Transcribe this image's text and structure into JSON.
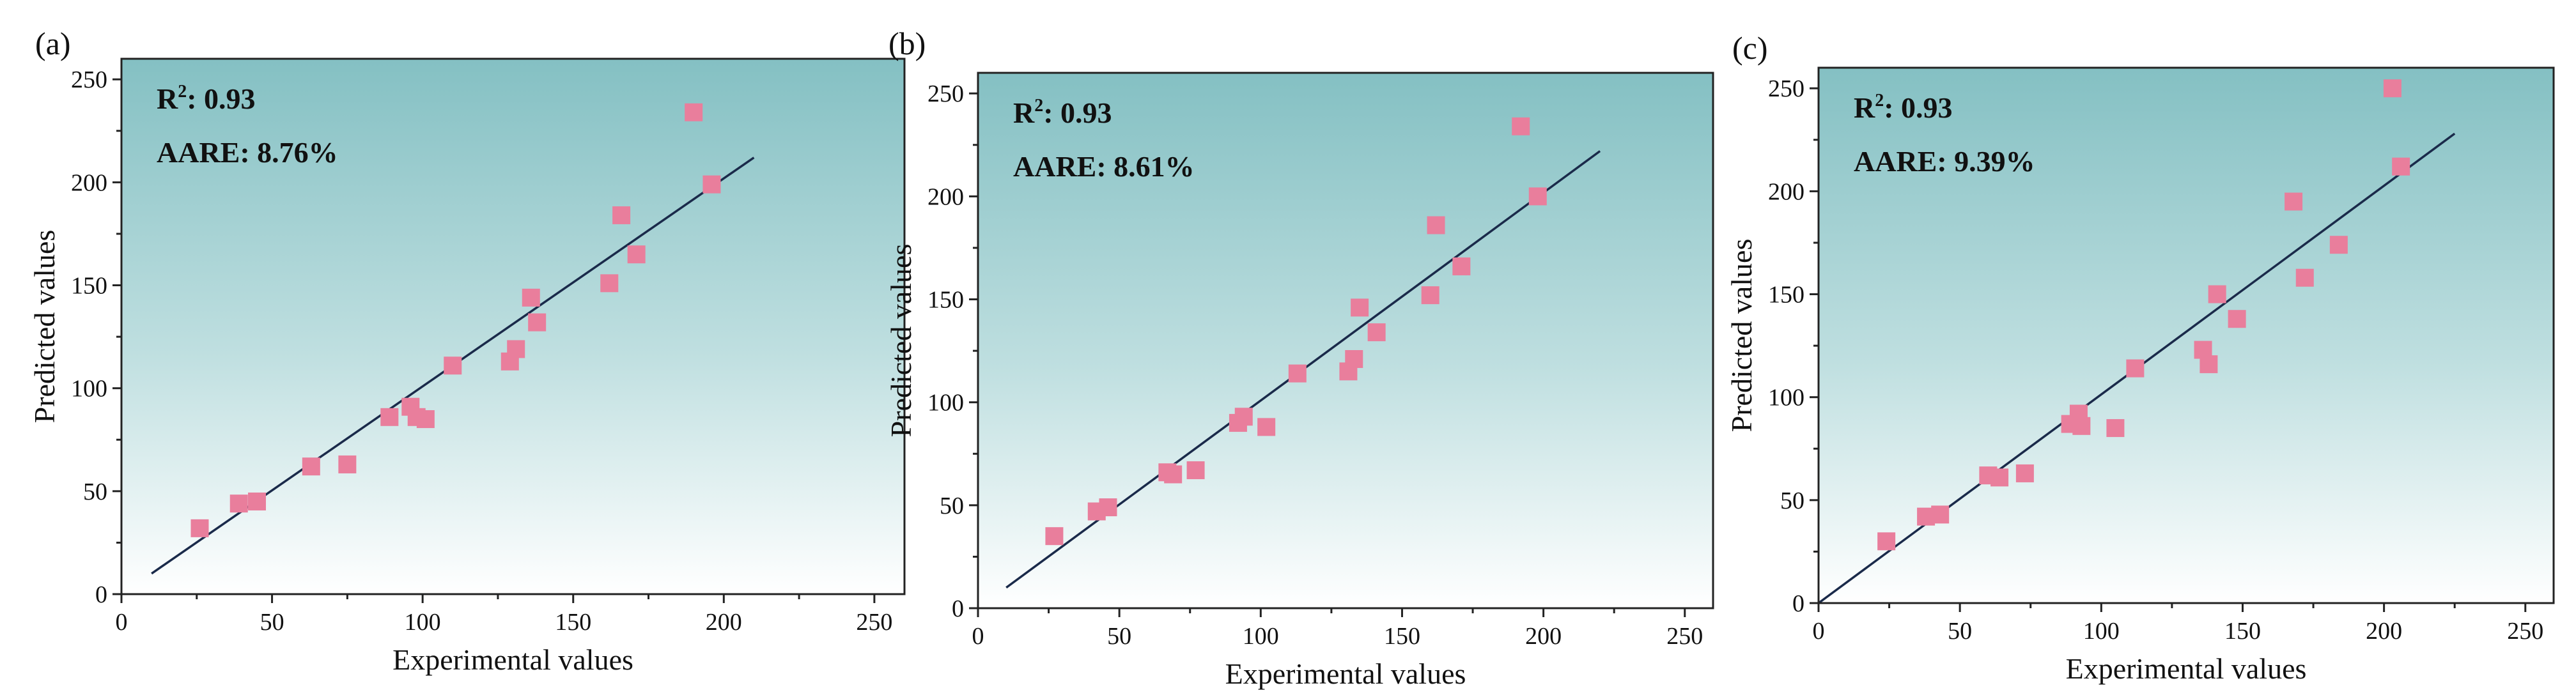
{
  "chart_data": [
    {
      "type": "scatter",
      "panel_label": "(a)",
      "xlabel": "Experimental values",
      "ylabel": "Predicted values",
      "xlim": [
        0,
        260
      ],
      "ylim": [
        0,
        260
      ],
      "xticks": [
        0,
        50,
        100,
        150,
        200,
        250
      ],
      "yticks": [
        0,
        50,
        100,
        150,
        200,
        250
      ],
      "annotation_r2": "0.93",
      "annotation_aare": "AARE: 8.76%",
      "fit_line": [
        [
          10,
          10
        ],
        [
          210,
          212
        ]
      ],
      "marker_color": "#e97e9c",
      "line_color": "#1a2a4a",
      "points": [
        [
          26,
          32
        ],
        [
          39,
          44
        ],
        [
          45,
          45
        ],
        [
          63,
          62
        ],
        [
          75,
          63
        ],
        [
          89,
          86
        ],
        [
          96,
          91
        ],
        [
          98,
          86
        ],
        [
          101,
          85
        ],
        [
          110,
          111
        ],
        [
          129,
          113
        ],
        [
          131,
          119
        ],
        [
          136,
          144
        ],
        [
          138,
          132
        ],
        [
          162,
          151
        ],
        [
          166,
          184
        ],
        [
          171,
          165
        ],
        [
          190,
          234
        ],
        [
          196,
          199
        ]
      ]
    },
    {
      "type": "scatter",
      "panel_label": "(b)",
      "xlabel": "Experimental values",
      "ylabel": "Predicted values",
      "xlim": [
        0,
        260
      ],
      "ylim": [
        0,
        260
      ],
      "xticks": [
        0,
        50,
        100,
        150,
        200,
        250
      ],
      "yticks": [
        0,
        50,
        100,
        150,
        200,
        250
      ],
      "annotation_r2": "0.93",
      "annotation_aare": "AARE: 8.61%",
      "fit_line": [
        [
          10,
          10
        ],
        [
          220,
          222
        ]
      ],
      "marker_color": "#e97e9c",
      "line_color": "#1a2a4a",
      "points": [
        [
          27,
          35
        ],
        [
          42,
          47
        ],
        [
          46,
          49
        ],
        [
          67,
          66
        ],
        [
          69,
          65
        ],
        [
          77,
          67
        ],
        [
          92,
          90
        ],
        [
          94,
          93
        ],
        [
          102,
          88
        ],
        [
          113,
          114
        ],
        [
          131,
          115
        ],
        [
          133,
          121
        ],
        [
          135,
          146
        ],
        [
          141,
          134
        ],
        [
          160,
          152
        ],
        [
          162,
          186
        ],
        [
          171,
          166
        ],
        [
          192,
          234
        ],
        [
          198,
          200
        ]
      ]
    },
    {
      "type": "scatter",
      "panel_label": "(c)",
      "xlabel": "Experimental values",
      "ylabel": "Predicted values",
      "xlim": [
        0,
        260
      ],
      "ylim": [
        0,
        260
      ],
      "xticks": [
        0,
        50,
        100,
        150,
        200,
        250
      ],
      "yticks": [
        0,
        50,
        100,
        150,
        200,
        250
      ],
      "annotation_r2": "0.93",
      "annotation_aare": "AARE: 9.39%",
      "fit_line": [
        [
          0,
          0
        ],
        [
          225,
          228
        ]
      ],
      "marker_color": "#e97e9c",
      "line_color": "#1a2a4a",
      "points": [
        [
          24,
          30
        ],
        [
          38,
          42
        ],
        [
          43,
          43
        ],
        [
          60,
          62
        ],
        [
          64,
          61
        ],
        [
          73,
          63
        ],
        [
          89,
          87
        ],
        [
          92,
          92
        ],
        [
          93,
          86
        ],
        [
          105,
          85
        ],
        [
          112,
          114
        ],
        [
          136,
          123
        ],
        [
          138,
          116
        ],
        [
          141,
          150
        ],
        [
          148,
          138
        ],
        [
          168,
          195
        ],
        [
          172,
          158
        ],
        [
          184,
          174
        ],
        [
          203,
          250
        ],
        [
          206,
          212
        ]
      ]
    }
  ]
}
